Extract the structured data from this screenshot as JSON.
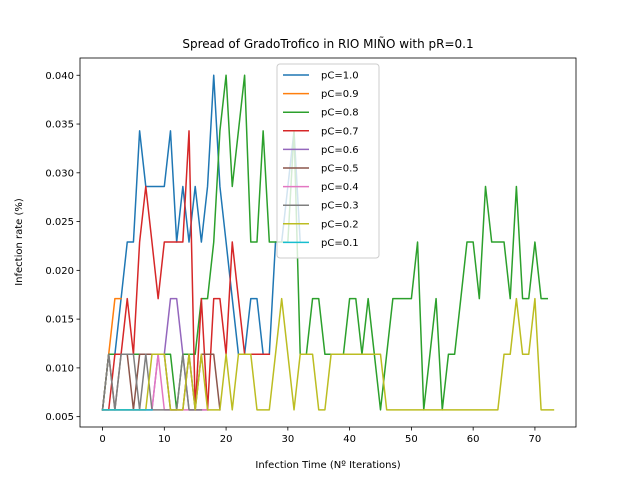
{
  "chart_data": {
    "type": "line",
    "title": "Spread of GradoTrofico in RIO MIÑO with pR=0.1",
    "xlabel": "Infection Time (Nº Iterations)",
    "ylabel": "Infection rate (%)",
    "xlim": [
      -3.65,
      76.65
    ],
    "ylim": [
      0.00394,
      0.04177
    ],
    "xticks": [
      0,
      10,
      20,
      30,
      40,
      50,
      60,
      70
    ],
    "xtick_labels": [
      "0",
      "10",
      "20",
      "30",
      "40",
      "50",
      "60",
      "70"
    ],
    "yticks": [
      0.005,
      0.01,
      0.015,
      0.02,
      0.025,
      0.03,
      0.035,
      0.04
    ],
    "ytick_labels": [
      "0.005",
      "0.010",
      "0.015",
      "0.020",
      "0.025",
      "0.030",
      "0.035",
      "0.040"
    ],
    "grid": false,
    "legend_position": "top-center",
    "series": [
      {
        "name": "pC=1.0",
        "color": "#1f77b4",
        "x": [
          0,
          1,
          2,
          3,
          4,
          5,
          6,
          7,
          8,
          9,
          10,
          11,
          12,
          13,
          14,
          15,
          16,
          17,
          18,
          19,
          20,
          21,
          22,
          23,
          24,
          25,
          26,
          27,
          28,
          29,
          30,
          31,
          32
        ],
        "y": [
          0.0057,
          0.0114,
          0.0114,
          0.0171,
          0.0229,
          0.0229,
          0.0343,
          0.0286,
          0.0286,
          0.0286,
          0.0286,
          0.0343,
          0.0229,
          0.0286,
          0.0229,
          0.0286,
          0.0229,
          0.0286,
          0.04,
          0.0286,
          0.0229,
          0.0171,
          0.0114,
          0.0114,
          0.0171,
          0.0171,
          0.0114,
          0.0114,
          0.0229,
          0.0229,
          0.0286,
          0.0343,
          0.0229
        ]
      },
      {
        "name": "pC=0.9",
        "color": "#ff7f0e",
        "x": [
          0,
          1,
          2,
          3
        ],
        "y": [
          0.0057,
          0.0114,
          0.0171,
          0.0171
        ]
      },
      {
        "name": "pC=0.8",
        "color": "#2ca02c",
        "x": [
          0,
          1,
          2,
          3,
          4,
          5,
          6,
          7,
          8,
          9,
          10,
          11,
          12,
          13,
          14,
          15,
          16,
          17,
          18,
          19,
          20,
          21,
          22,
          23,
          24,
          25,
          26,
          27,
          28,
          29,
          30,
          31,
          32,
          33,
          34,
          35,
          36,
          37,
          38,
          39,
          40,
          41,
          42,
          43,
          44,
          45,
          46,
          47,
          48,
          49,
          50,
          51,
          52,
          53,
          54,
          55,
          56,
          57,
          58,
          59,
          60,
          61,
          62,
          63,
          64,
          65,
          66,
          67,
          68,
          69,
          70,
          71,
          72
        ],
        "y": [
          0.0057,
          0.0114,
          0.0114,
          0.0114,
          0.0114,
          0.0114,
          0.0114,
          0.0114,
          0.0114,
          0.0114,
          0.0114,
          0.0114,
          0.0057,
          0.0114,
          0.0114,
          0.0114,
          0.0171,
          0.0171,
          0.0229,
          0.0343,
          0.04,
          0.0286,
          0.0343,
          0.04,
          0.0229,
          0.0229,
          0.0343,
          0.0229,
          0.0229,
          0.0229,
          0.0229,
          0.0343,
          0.0114,
          0.0114,
          0.0171,
          0.0171,
          0.0114,
          0.0114,
          0.0114,
          0.0114,
          0.0171,
          0.0171,
          0.0114,
          0.0171,
          0.0114,
          0.0057,
          0.0114,
          0.0171,
          0.0171,
          0.0171,
          0.0171,
          0.0229,
          0.0057,
          0.0114,
          0.0171,
          0.0057,
          0.0114,
          0.0114,
          0.0171,
          0.0229,
          0.0229,
          0.0171,
          0.0286,
          0.0229,
          0.0229,
          0.0229,
          0.0171,
          0.0286,
          0.0171,
          0.0171,
          0.0229,
          0.0171,
          0.0171
        ]
      },
      {
        "name": "pC=0.7",
        "color": "#d62728",
        "x": [
          0,
          1,
          2,
          3,
          4,
          5,
          6,
          7,
          8,
          9,
          10,
          11,
          12,
          13,
          14,
          15,
          16,
          17,
          18,
          19,
          20,
          21,
          22,
          23,
          24,
          25,
          26,
          27
        ],
        "y": [
          0.0057,
          0.0057,
          0.0114,
          0.0114,
          0.0171,
          0.0114,
          0.0229,
          0.0286,
          0.0229,
          0.0171,
          0.0229,
          0.0229,
          0.0229,
          0.0229,
          0.0343,
          0.0057,
          0.0171,
          0.0057,
          0.0171,
          0.0171,
          0.0114,
          0.0229,
          0.0171,
          0.0114,
          0.0114,
          0.0114,
          0.0114,
          0.0114
        ]
      },
      {
        "name": "pC=0.6",
        "color": "#9467bd",
        "x": [
          0,
          1,
          2,
          3,
          4,
          5,
          6,
          7,
          8,
          9,
          10,
          11,
          12,
          13,
          14,
          15,
          16,
          17
        ],
        "y": [
          0.0057,
          0.0057,
          0.0057,
          0.0057,
          0.0057,
          0.0057,
          0.0057,
          0.0057,
          0.0057,
          0.0114,
          0.0114,
          0.0171,
          0.0171,
          0.0114,
          0.0057,
          0.0057,
          0.0057,
          0.0057
        ]
      },
      {
        "name": "pC=0.5",
        "color": "#8c564b",
        "x": [
          0,
          1,
          2,
          3,
          4,
          5,
          6,
          7,
          8,
          9,
          10,
          11,
          12,
          13,
          14,
          15,
          16,
          17,
          18,
          19
        ],
        "y": [
          0.0057,
          0.0114,
          0.0057,
          0.0114,
          0.0114,
          0.0057,
          0.0114,
          0.0114,
          0.0114,
          0.0114,
          0.0114,
          0.0057,
          0.0057,
          0.0057,
          0.0114,
          0.0057,
          0.0114,
          0.0114,
          0.0114,
          0.0057
        ]
      },
      {
        "name": "pC=0.4",
        "color": "#e377c2",
        "x": [
          0,
          1,
          2,
          3,
          4,
          5,
          6,
          7,
          8,
          9,
          10,
          11,
          12,
          13,
          14,
          15,
          16,
          17
        ],
        "y": [
          0.0057,
          0.0057,
          0.0057,
          0.0057,
          0.0057,
          0.0057,
          0.0057,
          0.0057,
          0.0057,
          0.0114,
          0.0057,
          0.0057,
          0.0057,
          0.0057,
          0.0057,
          0.0057,
          0.0057,
          0.0057
        ]
      },
      {
        "name": "pC=0.3",
        "color": "#7f7f7f",
        "x": [
          0,
          1,
          2,
          3,
          4,
          5,
          6,
          7,
          8,
          9,
          10,
          11,
          12,
          13,
          14,
          15,
          16
        ],
        "y": [
          0.0057,
          0.0114,
          0.0057,
          0.0114,
          0.0114,
          0.0114,
          0.0057,
          0.0114,
          0.0057,
          0.0057,
          0.0057,
          0.0057,
          0.0057,
          0.0114,
          0.0057,
          0.0057,
          0.0057
        ]
      },
      {
        "name": "pC=0.2",
        "color": "#bcbd22",
        "x": [
          0,
          1,
          2,
          3,
          4,
          5,
          6,
          7,
          8,
          9,
          10,
          11,
          12,
          13,
          14,
          15,
          16,
          17,
          18,
          19,
          20,
          21,
          22,
          23,
          24,
          25,
          26,
          27,
          28,
          29,
          30,
          31,
          32,
          33,
          34,
          35,
          36,
          37,
          38,
          39,
          40,
          41,
          42,
          43,
          44,
          45,
          46,
          47,
          48,
          49,
          50,
          51,
          52,
          53,
          54,
          55,
          56,
          57,
          58,
          59,
          60,
          61,
          62,
          63,
          64,
          65,
          66,
          67,
          68,
          69,
          70,
          71,
          72,
          73
        ],
        "y": [
          0.0057,
          0.0057,
          0.0057,
          0.0057,
          0.0057,
          0.0057,
          0.0057,
          0.0057,
          0.0114,
          0.0114,
          0.0114,
          0.0057,
          0.0057,
          0.0057,
          0.0114,
          0.0057,
          0.0114,
          0.0057,
          0.0057,
          0.0057,
          0.0114,
          0.0057,
          0.0114,
          0.0114,
          0.0114,
          0.0057,
          0.0057,
          0.0057,
          0.0114,
          0.0171,
          0.0114,
          0.0057,
          0.0114,
          0.0114,
          0.0114,
          0.0057,
          0.0057,
          0.0114,
          0.0114,
          0.0114,
          0.0114,
          0.0114,
          0.0114,
          0.0114,
          0.0114,
          0.0114,
          0.0057,
          0.0057,
          0.0057,
          0.0057,
          0.0057,
          0.0057,
          0.0057,
          0.0057,
          0.0057,
          0.0057,
          0.0057,
          0.0057,
          0.0057,
          0.0057,
          0.0057,
          0.0057,
          0.0057,
          0.0057,
          0.0057,
          0.0114,
          0.0114,
          0.0171,
          0.0114,
          0.0114,
          0.0171,
          0.0057,
          0.0057,
          0.0057
        ]
      },
      {
        "name": "pC=0.1",
        "color": "#17becf",
        "x": [
          0,
          1,
          2,
          3,
          4,
          5,
          6,
          7,
          8
        ],
        "y": [
          0.0057,
          0.0057,
          0.0057,
          0.0057,
          0.0057,
          0.0057,
          0.0057,
          0.0057,
          0.0057
        ]
      }
    ]
  }
}
